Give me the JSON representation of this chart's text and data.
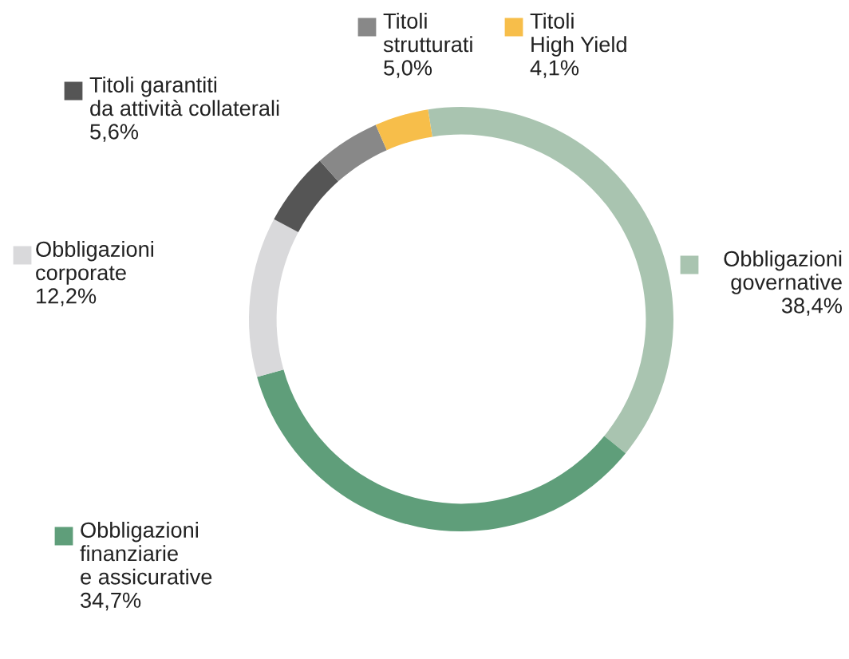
{
  "chart_data": {
    "type": "donut",
    "categories": [
      "Obbligazioni\ngovernative",
      "Obbligazioni\nfinanziarie\ne assicurative",
      "Obbligazioni\ncorporate",
      "Titoli garantiti\nda attività collaterali",
      "Titoli\nstrutturati",
      "Titoli\nHigh Yield"
    ],
    "values": [
      38.4,
      34.7,
      12.2,
      5.6,
      5.0,
      4.1
    ],
    "colors": [
      "#a9c4b0",
      "#5f9e7a",
      "#d9d9db",
      "#555555",
      "#888888",
      "#f7be4a"
    ],
    "value_labels": [
      "38,4%",
      "34,7%",
      "12,2%",
      "5,6%",
      "5,0%",
      "4,1%"
    ],
    "legend": "top"
  }
}
